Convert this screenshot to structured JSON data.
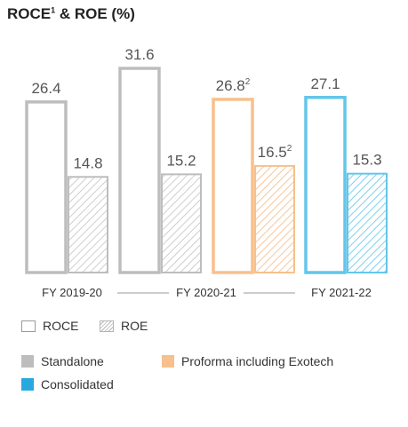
{
  "title": "ROCE",
  "title_sup": "1",
  "title_rest": " & ROE (%)",
  "chart_data": {
    "type": "bar",
    "categories": [
      "FY 2019-20",
      "FY 2020-21",
      "FY 2020-21",
      "FY 2021-22"
    ],
    "group_labels": [
      "FY 2019-20",
      "FY 2020-21",
      "FY 2021-22"
    ],
    "series": [
      {
        "name": "ROCE",
        "values": [
          26.4,
          31.6,
          26.8,
          27.1
        ],
        "labels": [
          "26.4",
          "31.6",
          "26.8",
          "27.1"
        ],
        "label_sup": [
          "",
          "",
          "2",
          ""
        ]
      },
      {
        "name": "ROE",
        "values": [
          14.8,
          15.2,
          16.5,
          15.3
        ],
        "labels": [
          "14.8",
          "15.2",
          "16.5",
          "15.3"
        ],
        "label_sup": [
          "",
          "",
          "2",
          ""
        ]
      }
    ],
    "bar_basis": [
      "Standalone",
      "Standalone",
      "Proforma including Exotech",
      "Consolidated"
    ],
    "ylim": [
      0,
      31.6
    ],
    "colors": {
      "Standalone": "#bdbdbd",
      "Proforma including Exotech": "#f7c08c",
      "Consolidated": "#62c6ea"
    }
  },
  "legend": {
    "roce": "ROCE",
    "roe": "ROE",
    "standalone": "Standalone",
    "proforma": "Proforma including Exotech",
    "consolidated": "Consolidated"
  }
}
